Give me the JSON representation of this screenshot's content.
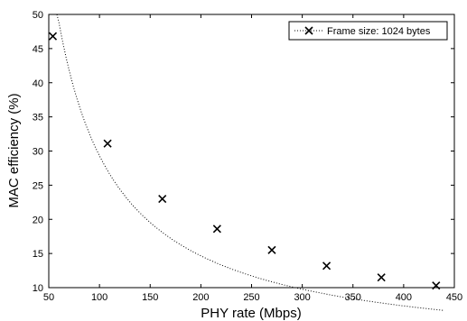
{
  "chart_data": {
    "type": "line",
    "title": "",
    "xlabel": "PHY rate (Mbps)",
    "ylabel": "MAC efficiency (%)",
    "xlim": [
      50,
      450
    ],
    "ylim": [
      10,
      50
    ],
    "xticks": [
      50,
      100,
      150,
      200,
      250,
      300,
      350,
      400,
      450
    ],
    "yticks": [
      10,
      15,
      20,
      25,
      30,
      35,
      40,
      45,
      50
    ],
    "grid": false,
    "legend_position": "top-right",
    "series": [
      {
        "name": "Frame size: 1024 bytes",
        "marker": "x",
        "line_style": "dotted",
        "color": "#000000",
        "x": [
          54,
          108,
          162,
          216,
          270,
          324,
          378,
          432
        ],
        "y": [
          46.8,
          31.1,
          23.0,
          18.6,
          15.5,
          13.2,
          11.5,
          10.3
        ]
      }
    ]
  }
}
